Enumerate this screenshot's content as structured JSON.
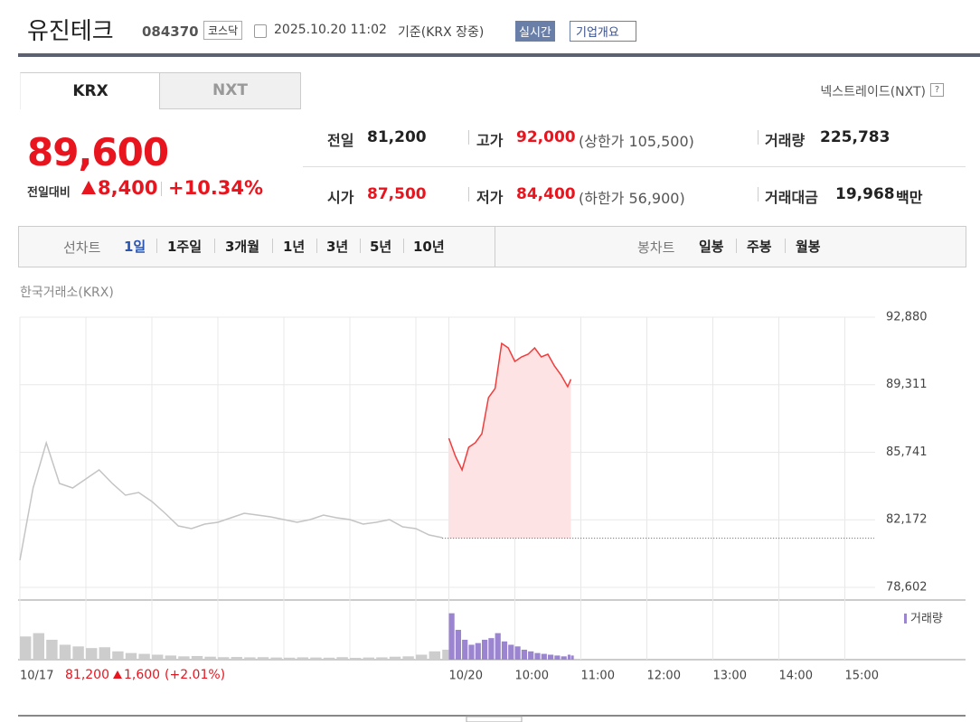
{
  "header": {
    "name": "유진테크",
    "code": "084370",
    "market": "코스닥",
    "datetime": "2025.10.20 11:02",
    "basis": "기준(KRX 장중)",
    "realtime": "실시간",
    "overview": "기업개요"
  },
  "tabs": [
    "KRX",
    "NXT"
  ],
  "nxt_link": "넥스트레이드(NXT)",
  "help": "?",
  "price": {
    "current": "89,600",
    "change_label": "전일대비",
    "change": "8,400",
    "rate": "+10.34%"
  },
  "stats": [
    [
      {
        "label": "전일",
        "value": "81,200"
      },
      {
        "label": "고가",
        "value": "92,000",
        "extra": "(상한가 105,500)"
      },
      {
        "label": "거래량",
        "value": "225,783"
      }
    ],
    [
      {
        "label": "시가",
        "value": "87,500"
      },
      {
        "label": "저가",
        "value": "84,400",
        "extra": "(하한가 56,900)"
      },
      {
        "label": "거래대금",
        "value": "19,968",
        "unit": "백만"
      }
    ]
  ],
  "period": {
    "line_label": "선차트",
    "line_options": [
      "1일",
      "1주일",
      "3개월",
      "1년",
      "3년",
      "5년",
      "10년"
    ],
    "candle_label": "봉차트",
    "candle_options": [
      "일봉",
      "주봉",
      "월봉"
    ]
  },
  "chart_data": {
    "type": "line",
    "source": "한국거래소(KRX)",
    "xlim": [
      0,
      13
    ],
    "xticks": [
      {
        "value": 0,
        "label": "10/17"
      },
      {
        "value": 1,
        "label": null
      },
      {
        "value": 2,
        "label": null
      },
      {
        "value": 3,
        "label": null
      },
      {
        "value": 4,
        "label": null
      },
      {
        "value": 5,
        "label": null
      },
      {
        "value": 6,
        "label": null
      },
      {
        "value": 6.5,
        "label": "10/20"
      },
      {
        "value": 7.5,
        "label": "10:00"
      },
      {
        "value": 8.5,
        "label": "11:00"
      },
      {
        "value": 9.5,
        "label": "12:00"
      },
      {
        "value": 10.5,
        "label": "13:00"
      },
      {
        "value": 11.5,
        "label": "14:00"
      },
      {
        "value": 12.5,
        "label": "15:00"
      }
    ],
    "ylim": [
      78602,
      92880
    ],
    "yticks": [
      {
        "value": 78602,
        "label": "78,602"
      },
      {
        "value": 82172,
        "label": "82,172"
      },
      {
        "value": 85741,
        "label": "85,741"
      },
      {
        "value": 89311,
        "label": "89,311"
      },
      {
        "value": 92880,
        "label": "92,880"
      }
    ],
    "grid": true,
    "reference_line": 81200,
    "volume_label": "거래량",
    "volume_ylim": [
      0,
      30000
    ],
    "prev_day_summary": {
      "close": "81,200",
      "change": "1,600",
      "rate": "(+2.01%)"
    },
    "series": [
      {
        "color": "#c4c4c4",
        "volume_color": "#cdcdcd",
        "x": [
          0,
          0.2,
          0.4,
          0.6,
          0.8,
          1.0,
          1.2,
          1.4,
          1.6,
          1.8,
          2.0,
          2.2,
          2.4,
          2.6,
          2.8,
          3.0,
          3.2,
          3.4,
          3.6,
          3.8,
          4.0,
          4.2,
          4.4,
          4.6,
          4.8,
          5.0,
          5.2,
          5.4,
          5.6,
          5.8,
          6.0,
          6.2,
          6.4
        ],
        "values": [
          80035,
          83855,
          86240,
          84094,
          83855,
          84333,
          84810,
          84094,
          83473,
          83617,
          83139,
          82519,
          81850,
          81707,
          81946,
          82041,
          82280,
          82519,
          82423,
          82328,
          82184,
          82041,
          82184,
          82423,
          82280,
          82184,
          81946,
          82041,
          82184,
          81802,
          81707,
          81372,
          81229
        ],
        "volume": [
          14000,
          16000,
          12000,
          9000,
          8000,
          7000,
          7500,
          5000,
          4000,
          3500,
          3000,
          2500,
          2000,
          2200,
          1800,
          1500,
          1600,
          1400,
          1500,
          1300,
          1200,
          1400,
          1300,
          1200,
          1500,
          1100,
          1300,
          1400,
          1800,
          2000,
          3000,
          5000,
          6000
        ]
      },
      {
        "color": "#f03c3c",
        "fill": "#fde3e3",
        "volume_color": "#9b84d0",
        "x": [
          6.5,
          6.6,
          6.7,
          6.8,
          6.9,
          7.0,
          7.1,
          7.2,
          7.3,
          7.4,
          7.5,
          7.6,
          7.7,
          7.8,
          7.9,
          8.0,
          8.1,
          8.2,
          8.3,
          8.35
        ],
        "values": [
          86481,
          85527,
          84810,
          86004,
          86243,
          86720,
          88630,
          89108,
          91495,
          91257,
          90540,
          90779,
          90922,
          91257,
          90779,
          90922,
          90301,
          89824,
          89203,
          89600
        ],
        "volume": [
          28000,
          18000,
          12000,
          9000,
          10000,
          12000,
          13000,
          16000,
          11000,
          9000,
          8000,
          6000,
          5000,
          4000,
          3500,
          3000,
          2500,
          2000,
          3000,
          2500
        ]
      }
    ]
  }
}
